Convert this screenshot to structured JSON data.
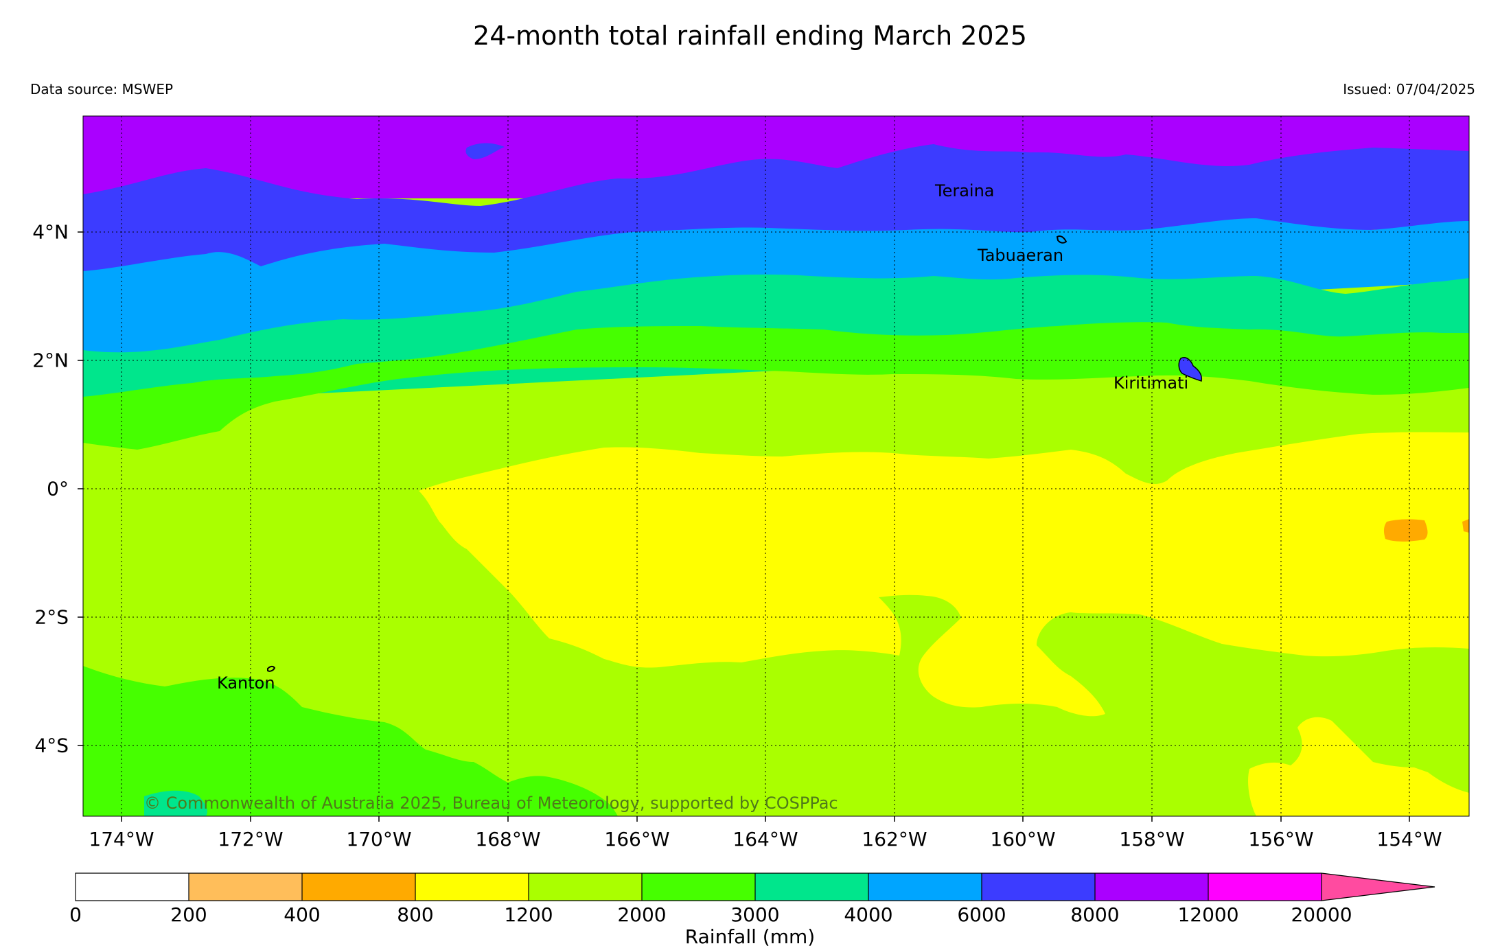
{
  "map": {
    "title": "24-month total rainfall ending March 2025",
    "data_source": "Data source: MSWEP",
    "issued": "Issued: 07/04/2025",
    "copyright": "© Commonwealth of Australia 2025, Bureau of Meteorology, supported by COSPPac",
    "lon_labels": [
      "174°W",
      "172°W",
      "170°W",
      "168°W",
      "166°W",
      "164°W",
      "162°W",
      "160°W",
      "158°W",
      "156°W",
      "154°W"
    ],
    "lat_labels": [
      "4°N",
      "2°N",
      "0°",
      "2°S",
      "4°S"
    ],
    "places": [
      {
        "name": "Teraina"
      },
      {
        "name": "Tabuaeran"
      },
      {
        "name": "Kiritimati"
      },
      {
        "name": "Kanton"
      }
    ],
    "colorbar": {
      "title": "Rainfall (mm)",
      "ticks": [
        "0",
        "200",
        "400",
        "800",
        "1200",
        "2000",
        "3000",
        "4000",
        "6000",
        "8000",
        "12000",
        "20000"
      ],
      "colors": [
        "#ffffff",
        "#ffbe5a",
        "#ffaa00",
        "#ffff00",
        "#aaff00",
        "#46ff00",
        "#00e68c",
        "#00a5ff",
        "#3c3cff",
        "#aa00ff",
        "#ff00ff",
        "#ff4ba0"
      ]
    }
  }
}
